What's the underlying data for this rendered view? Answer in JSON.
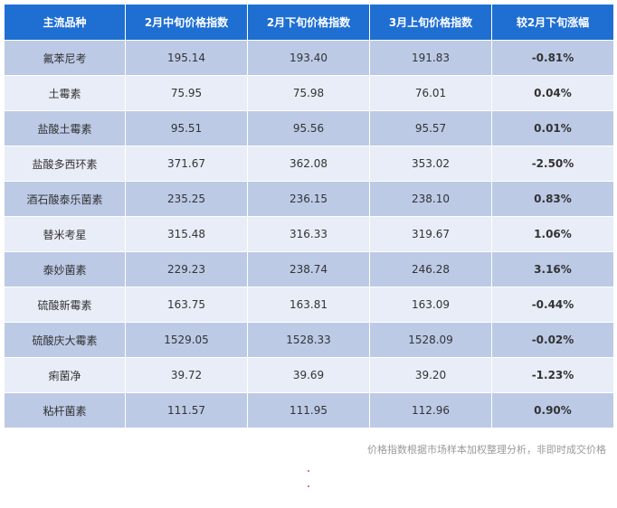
{
  "colors": {
    "header_bg": "#1f6fd3",
    "row_dark": "#bccae6",
    "row_light": "#e8edf7",
    "up": "#ee1d2c",
    "down": "#2f7d1e"
  },
  "table": {
    "headers": [
      "主流品种",
      "2月中旬价格指数",
      "2月下旬价格指数",
      "3月上旬价格指数",
      "较2月下旬涨幅"
    ],
    "rows": [
      {
        "name": "氟苯尼考",
        "mid_feb": "195.14",
        "late_feb": "193.40",
        "early_mar": "191.83",
        "change": "-0.81%",
        "direction": "down"
      },
      {
        "name": "土霉素",
        "mid_feb": "75.95",
        "late_feb": "75.98",
        "early_mar": "76.01",
        "change": "0.04%",
        "direction": "up"
      },
      {
        "name": "盐酸土霉素",
        "mid_feb": "95.51",
        "late_feb": "95.56",
        "early_mar": "95.57",
        "change": "0.01%",
        "direction": "up"
      },
      {
        "name": "盐酸多西环素",
        "mid_feb": "371.67",
        "late_feb": "362.08",
        "early_mar": "353.02",
        "change": "-2.50%",
        "direction": "down"
      },
      {
        "name": "酒石酸泰乐菌素",
        "mid_feb": "235.25",
        "late_feb": "236.15",
        "early_mar": "238.10",
        "change": "0.83%",
        "direction": "up"
      },
      {
        "name": "替米考星",
        "mid_feb": "315.48",
        "late_feb": "316.33",
        "early_mar": "319.67",
        "change": "1.06%",
        "direction": "up"
      },
      {
        "name": "泰妙菌素",
        "mid_feb": "229.23",
        "late_feb": "238.74",
        "early_mar": "246.28",
        "change": "3.16%",
        "direction": "up"
      },
      {
        "name": "硫酸新霉素",
        "mid_feb": "163.75",
        "late_feb": "163.81",
        "early_mar": "163.09",
        "change": "-0.44%",
        "direction": "down"
      },
      {
        "name": "硫酸庆大霉素",
        "mid_feb": "1529.05",
        "late_feb": "1528.33",
        "early_mar": "1528.09",
        "change": "-0.02%",
        "direction": "down"
      },
      {
        "name": "痢菌净",
        "mid_feb": "39.72",
        "late_feb": "39.69",
        "early_mar": "39.20",
        "change": "-1.23%",
        "direction": "down"
      },
      {
        "name": "粘杆菌素",
        "mid_feb": "111.57",
        "late_feb": "111.95",
        "early_mar": "112.96",
        "change": "0.90%",
        "direction": "up"
      }
    ]
  },
  "footnote": "价格指数根据市场样本加权整理分析，非即时成交价格"
}
